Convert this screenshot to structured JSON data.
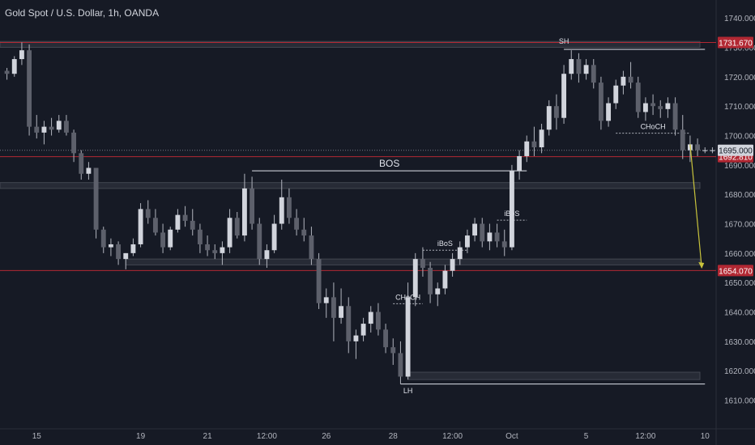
{
  "chart_data": {
    "type": "candlestick",
    "title": "Gold Spot / U.S. Dollar, 1h, OANDA",
    "ylim": [
      1603,
      1745
    ],
    "y_ticks": [
      1610,
      1620,
      1630,
      1640,
      1650,
      1660,
      1670,
      1680,
      1690,
      1700,
      1710,
      1720,
      1730,
      1740
    ],
    "y_tick_labels": [
      "1610.000",
      "1620.000",
      "1630.000",
      "1640.000",
      "1650.000",
      "1660.000",
      "1670.000",
      "1680.000",
      "1690.000",
      "1700.000",
      "1710.000",
      "1720.000",
      "1730.000",
      "1740.000"
    ],
    "x_ticks": [
      {
        "label": "15",
        "i": 4
      },
      {
        "label": "19",
        "i": 18
      },
      {
        "label": "21",
        "i": 27
      },
      {
        "label": "12:00",
        "i": 35
      },
      {
        "label": "26",
        "i": 43
      },
      {
        "label": "28",
        "i": 52
      },
      {
        "label": "12:00",
        "i": 60
      },
      {
        "label": "Oct",
        "i": 68
      },
      {
        "label": "5",
        "i": 78
      },
      {
        "label": "12:00",
        "i": 86
      },
      {
        "label": "10",
        "i": 94
      }
    ],
    "x_count": 96,
    "candle_color": "#b2b5be",
    "candles": [
      [
        1722,
        1723,
        1719,
        1721
      ],
      [
        1721,
        1727,
        1720,
        1726
      ],
      [
        1726,
        1731.7,
        1724,
        1729
      ],
      [
        1729,
        1731,
        1700,
        1703
      ],
      [
        1703,
        1707,
        1699,
        1701
      ],
      [
        1701,
        1705,
        1697,
        1703
      ],
      [
        1703,
        1706,
        1700,
        1702
      ],
      [
        1702,
        1707,
        1701,
        1705
      ],
      [
        1705,
        1707,
        1700,
        1701
      ],
      [
        1701,
        1702,
        1691,
        1694
      ],
      [
        1694,
        1695,
        1685,
        1687
      ],
      [
        1687,
        1691,
        1685,
        1689
      ],
      [
        1689,
        1689,
        1665,
        1668
      ],
      [
        1668,
        1669,
        1660,
        1662
      ],
      [
        1662,
        1665,
        1659,
        1663
      ],
      [
        1663,
        1664,
        1656,
        1658
      ],
      [
        1658,
        1660,
        1654.5,
        1660
      ],
      [
        1660,
        1665,
        1659,
        1663
      ],
      [
        1663,
        1677,
        1662,
        1675
      ],
      [
        1675,
        1678,
        1670,
        1672
      ],
      [
        1672,
        1675,
        1666,
        1667
      ],
      [
        1667,
        1670,
        1660,
        1662
      ],
      [
        1662,
        1669,
        1661,
        1668
      ],
      [
        1668,
        1675,
        1667,
        1673
      ],
      [
        1673,
        1676,
        1669,
        1671
      ],
      [
        1671,
        1675,
        1666,
        1668
      ],
      [
        1668,
        1670,
        1660,
        1663
      ],
      [
        1663,
        1666,
        1659,
        1661
      ],
      [
        1661,
        1663,
        1658,
        1660
      ],
      [
        1660,
        1664,
        1656,
        1662
      ],
      [
        1662,
        1675,
        1660,
        1672
      ],
      [
        1672,
        1674,
        1665,
        1666
      ],
      [
        1666,
        1687,
        1664,
        1682
      ],
      [
        1682,
        1686,
        1668,
        1670
      ],
      [
        1670,
        1672,
        1656,
        1658
      ],
      [
        1658,
        1663,
        1655,
        1661
      ],
      [
        1661,
        1673,
        1660,
        1670
      ],
      [
        1670,
        1685,
        1668,
        1679
      ],
      [
        1679,
        1682,
        1670,
        1672
      ],
      [
        1672,
        1675,
        1666,
        1668
      ],
      [
        1668,
        1672,
        1664,
        1666
      ],
      [
        1666,
        1669,
        1656,
        1658
      ],
      [
        1658,
        1660,
        1641,
        1643
      ],
      [
        1643,
        1648,
        1638,
        1645
      ],
      [
        1645,
        1650,
        1630,
        1638
      ],
      [
        1638,
        1648,
        1636,
        1642
      ],
      [
        1642,
        1645,
        1626,
        1630
      ],
      [
        1630,
        1634,
        1624,
        1632
      ],
      [
        1632,
        1638,
        1630,
        1636
      ],
      [
        1636,
        1642,
        1633,
        1640
      ],
      [
        1640,
        1643,
        1632,
        1634
      ],
      [
        1634,
        1636,
        1626,
        1628
      ],
      [
        1628,
        1631,
        1622,
        1626
      ],
      [
        1626,
        1630,
        1615.5,
        1618
      ],
      [
        1618,
        1650,
        1617,
        1645
      ],
      [
        1645,
        1660,
        1642,
        1658
      ],
      [
        1658,
        1662,
        1652,
        1655
      ],
      [
        1655,
        1657,
        1643,
        1646
      ],
      [
        1646,
        1650,
        1642,
        1648
      ],
      [
        1648,
        1656,
        1646,
        1654
      ],
      [
        1654,
        1660,
        1652,
        1658
      ],
      [
        1658,
        1664,
        1656,
        1662
      ],
      [
        1662,
        1668,
        1660,
        1666
      ],
      [
        1666,
        1672,
        1664,
        1670
      ],
      [
        1670,
        1672,
        1662,
        1664
      ],
      [
        1664,
        1670,
        1661,
        1667
      ],
      [
        1667,
        1670,
        1662,
        1664
      ],
      [
        1664,
        1668,
        1659,
        1662
      ],
      [
        1662,
        1690,
        1661,
        1688
      ],
      [
        1688,
        1695,
        1685,
        1693
      ],
      [
        1693,
        1700,
        1691,
        1698
      ],
      [
        1698,
        1703,
        1693,
        1696
      ],
      [
        1696,
        1704,
        1694,
        1702
      ],
      [
        1702,
        1712,
        1700,
        1710
      ],
      [
        1710,
        1714,
        1702,
        1706
      ],
      [
        1706,
        1724,
        1704,
        1721
      ],
      [
        1721,
        1729,
        1719,
        1726
      ],
      [
        1726,
        1728,
        1718,
        1721
      ],
      [
        1721,
        1726,
        1719,
        1724
      ],
      [
        1724,
        1726,
        1716,
        1718
      ],
      [
        1718,
        1720,
        1702,
        1705
      ],
      [
        1705,
        1713,
        1703,
        1711
      ],
      [
        1711,
        1719,
        1709,
        1717
      ],
      [
        1717,
        1722,
        1714,
        1720
      ],
      [
        1720,
        1725,
        1716,
        1718
      ],
      [
        1718,
        1720,
        1706,
        1708
      ],
      [
        1708,
        1713,
        1705,
        1711
      ],
      [
        1711,
        1714,
        1707,
        1710
      ],
      [
        1710,
        1712,
        1706,
        1709
      ],
      [
        1709,
        1713,
        1706,
        1711
      ],
      [
        1711,
        1713,
        1700,
        1702
      ],
      [
        1702,
        1707,
        1692,
        1695
      ],
      [
        1695,
        1700,
        1691,
        1697
      ],
      [
        1697,
        1699,
        1693,
        1695
      ],
      [
        1695,
        1696,
        1694,
        1695
      ],
      [
        1695,
        1696,
        1694,
        1695
      ]
    ],
    "levels": [
      {
        "price": 1731.67,
        "label": "1731.670",
        "color": "#b22833"
      },
      {
        "price": 1692.81,
        "label": "1692.810",
        "color": "#b22833"
      },
      {
        "price": 1654.07,
        "label": "1654.070",
        "color": "#b22833"
      }
    ],
    "current_price": {
      "price": 1695.0,
      "label": "1695.000"
    },
    "zones": [
      {
        "i0": -1,
        "i1": 94,
        "y_low": 1730.0,
        "y_high": 1732.0
      },
      {
        "i0": -1,
        "i1": 94,
        "y_low": 1682.0,
        "y_high": 1684.0
      },
      {
        "i0": 16,
        "i1": 94,
        "y_low": 1656.0,
        "y_high": 1658.0
      },
      {
        "i0": 54,
        "i1": 94,
        "y_low": 1617.0,
        "y_high": 1619.5
      }
    ],
    "structure_lines": [
      {
        "i0": 33,
        "i1": 70,
        "price": 1688.0,
        "text": "BOS",
        "style": "solid"
      },
      {
        "i0": 75,
        "i1": 94,
        "price": 1729.3,
        "text": "",
        "style": "solid"
      },
      {
        "i0": 53,
        "i1": 94,
        "price": 1615.5,
        "text": "",
        "style": "solid"
      },
      {
        "i0": 82,
        "i1": 92,
        "price": 1700.8,
        "text": "CHoCH",
        "style": "dotted"
      },
      {
        "i0": 52,
        "i1": 56,
        "price": 1642.8,
        "text": "CHoCH",
        "style": "dotted"
      },
      {
        "i0": 56,
        "i1": 62,
        "price": 1661.0,
        "text": "iBoS",
        "style": "dotted"
      },
      {
        "i0": 66,
        "i1": 70,
        "price": 1671.2,
        "text": "iBoS",
        "style": "dotted"
      }
    ],
    "points": [
      {
        "i": 75,
        "price": 1731.2,
        "text": "SH"
      },
      {
        "i": 54,
        "price": 1612.3,
        "text": "LH"
      }
    ],
    "projection": {
      "from_i": 92,
      "from_price": 1697.0,
      "to_i": 94,
      "to_price": 1655.0,
      "color": "#c8c33c"
    }
  }
}
